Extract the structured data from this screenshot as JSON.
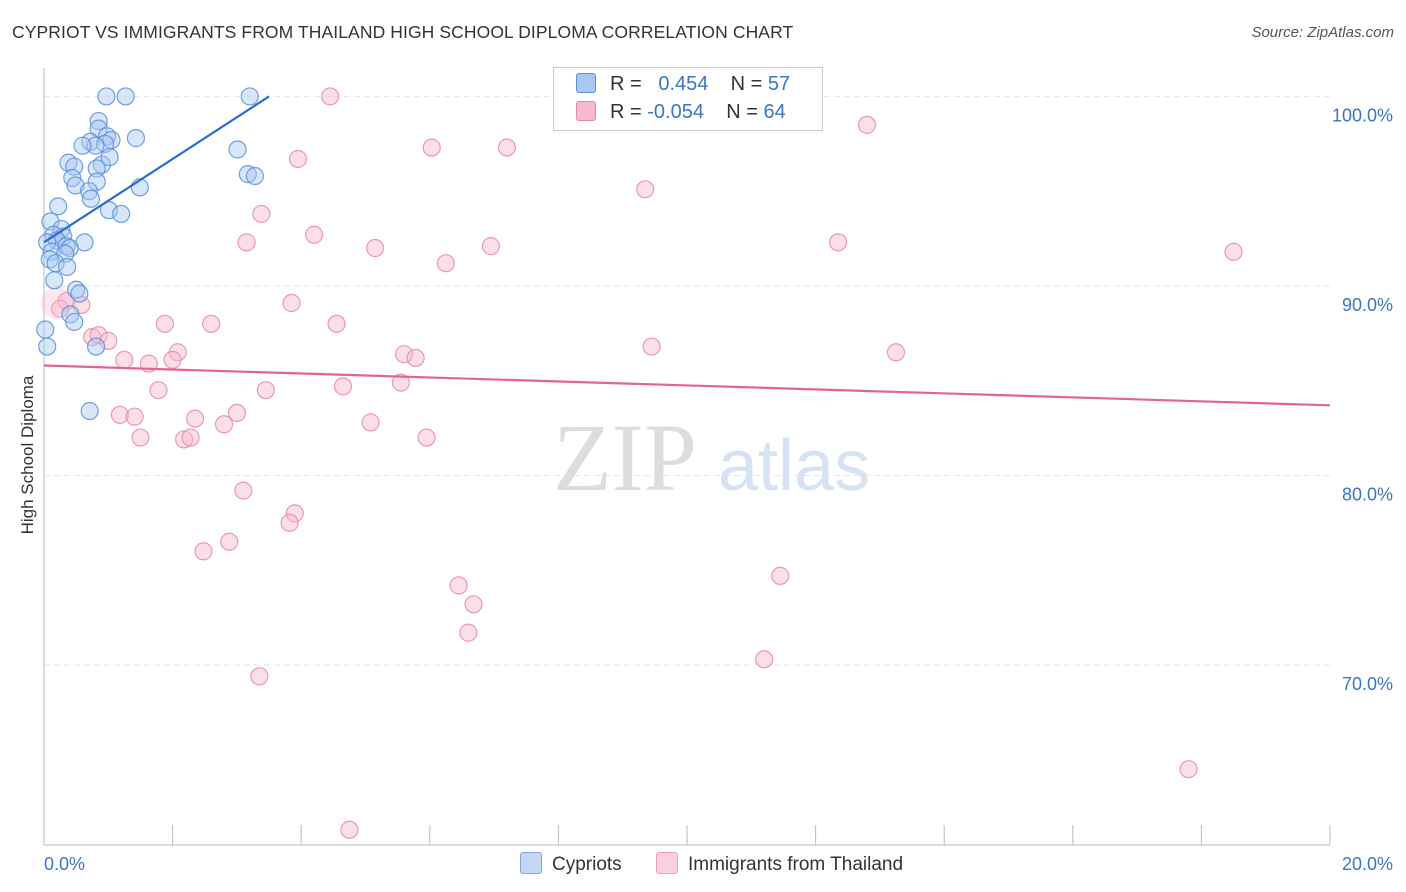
{
  "chart_data": {
    "type": "scatter",
    "title": "CYPRIOT VS IMMIGRANTS FROM THAILAND HIGH SCHOOL DIPLOMA CORRELATION CHART",
    "source": "Source: ZipAtlas.com",
    "xlabel": "",
    "ylabel": "High School Diploma",
    "xlim": [
      0,
      20
    ],
    "ylim": [
      60.5,
      101.5
    ],
    "x_tick_labels": [
      "0.0%",
      "20.0%"
    ],
    "y_ticks": [
      100,
      90,
      80,
      70
    ],
    "y_tick_labels": [
      "100.0%",
      "90.0%",
      "80.0%",
      "70.0%"
    ],
    "grid": true,
    "watermark": {
      "zip": "ZIP",
      "atlas": "atlas"
    },
    "legend": {
      "r_label": "R =",
      "n_label": "N =",
      "entries": [
        {
          "name": "Cypriots",
          "r": "0.454",
          "n": "57"
        },
        {
          "name": "Immigrants from Thailand",
          "r": "-0.054",
          "n": "64"
        }
      ]
    },
    "colors": {
      "cypriots_fill": "#a9c7f2",
      "cypriots_stroke": "#5b8fd6",
      "cypriots_line": "#2b6ccc",
      "thailand_fill": "#f7b9cc",
      "thailand_stroke": "#e88aa7",
      "thailand_line": "#e4648e",
      "axis_text": "#3b75c4",
      "grid": "#e6e6e6"
    },
    "series": [
      {
        "name": "Cypriots",
        "trend": {
          "x": [
            0.0,
            3.5
          ],
          "y": [
            92.3,
            100.0
          ]
        },
        "points": [
          [
            0.97,
            100.0
          ],
          [
            1.27,
            100.0
          ],
          [
            3.2,
            100.0
          ],
          [
            0.85,
            98.7
          ],
          [
            0.85,
            98.3
          ],
          [
            0.98,
            97.9
          ],
          [
            1.05,
            97.7
          ],
          [
            1.43,
            97.8
          ],
          [
            0.72,
            97.6
          ],
          [
            0.95,
            97.5
          ],
          [
            0.8,
            97.4
          ],
          [
            0.6,
            97.4
          ],
          [
            3.01,
            97.2
          ],
          [
            0.38,
            96.5
          ],
          [
            0.47,
            96.3
          ],
          [
            0.9,
            96.4
          ],
          [
            0.82,
            96.2
          ],
          [
            1.02,
            96.8
          ],
          [
            0.44,
            95.7
          ],
          [
            0.82,
            95.5
          ],
          [
            0.49,
            95.3
          ],
          [
            3.17,
            95.9
          ],
          [
            3.28,
            95.8
          ],
          [
            0.7,
            95.0
          ],
          [
            0.73,
            94.6
          ],
          [
            1.49,
            95.2
          ],
          [
            0.22,
            94.2
          ],
          [
            1.01,
            94.0
          ],
          [
            1.2,
            93.8
          ],
          [
            0.1,
            93.4
          ],
          [
            0.27,
            93.0
          ],
          [
            0.15,
            92.7
          ],
          [
            0.3,
            92.6
          ],
          [
            0.2,
            92.4
          ],
          [
            0.05,
            92.3
          ],
          [
            0.63,
            92.3
          ],
          [
            0.35,
            92.1
          ],
          [
            0.4,
            92.0
          ],
          [
            0.12,
            91.8
          ],
          [
            0.33,
            91.7
          ],
          [
            0.09,
            91.4
          ],
          [
            0.18,
            91.2
          ],
          [
            0.36,
            91.0
          ],
          [
            0.16,
            90.3
          ],
          [
            0.5,
            89.8
          ],
          [
            0.55,
            89.6
          ],
          [
            0.41,
            88.5
          ],
          [
            0.47,
            88.1
          ],
          [
            0.02,
            87.7
          ],
          [
            0.81,
            86.8
          ],
          [
            0.05,
            86.8
          ],
          [
            0.71,
            83.4
          ]
        ]
      },
      {
        "name": "Immigrants from Thailand",
        "trend": {
          "x": [
            0.0,
            20.0
          ],
          "y": [
            85.8,
            83.7
          ]
        },
        "points": [
          [
            4.45,
            100.0
          ],
          [
            12.8,
            98.5
          ],
          [
            6.03,
            97.3
          ],
          [
            7.2,
            97.3
          ],
          [
            3.95,
            96.7
          ],
          [
            9.35,
            95.1
          ],
          [
            3.38,
            93.8
          ],
          [
            4.2,
            92.7
          ],
          [
            3.15,
            92.3
          ],
          [
            12.35,
            92.3
          ],
          [
            5.15,
            92.0
          ],
          [
            6.95,
            92.1
          ],
          [
            6.25,
            91.2
          ],
          [
            18.5,
            91.8
          ],
          [
            0.35,
            89.2
          ],
          [
            0.58,
            89.0
          ],
          [
            3.85,
            89.1
          ],
          [
            1.88,
            88.0
          ],
          [
            2.6,
            88.0
          ],
          [
            4.55,
            88.0
          ],
          [
            0.25,
            88.8
          ],
          [
            0.75,
            87.3
          ],
          [
            0.85,
            87.4
          ],
          [
            1.0,
            87.1
          ],
          [
            9.45,
            86.8
          ],
          [
            1.25,
            86.1
          ],
          [
            1.63,
            85.9
          ],
          [
            2.08,
            86.5
          ],
          [
            2.0,
            86.1
          ],
          [
            5.6,
            86.4
          ],
          [
            5.78,
            86.2
          ],
          [
            13.25,
            86.5
          ],
          [
            1.78,
            84.5
          ],
          [
            3.45,
            84.5
          ],
          [
            4.65,
            84.7
          ],
          [
            5.55,
            84.9
          ],
          [
            1.18,
            83.2
          ],
          [
            1.41,
            83.1
          ],
          [
            2.35,
            83.0
          ],
          [
            3.0,
            83.3
          ],
          [
            2.8,
            82.7
          ],
          [
            5.08,
            82.8
          ],
          [
            1.5,
            82.0
          ],
          [
            2.18,
            81.9
          ],
          [
            2.28,
            82.0
          ],
          [
            5.95,
            82.0
          ],
          [
            3.1,
            79.2
          ],
          [
            3.9,
            78.0
          ],
          [
            3.82,
            77.5
          ],
          [
            2.88,
            76.5
          ],
          [
            2.48,
            76.0
          ],
          [
            11.45,
            74.7
          ],
          [
            6.45,
            74.2
          ],
          [
            6.68,
            73.2
          ],
          [
            6.6,
            71.7
          ],
          [
            11.2,
            70.3
          ],
          [
            3.35,
            69.4
          ],
          [
            17.8,
            64.5
          ],
          [
            4.75,
            61.3
          ]
        ]
      }
    ]
  }
}
